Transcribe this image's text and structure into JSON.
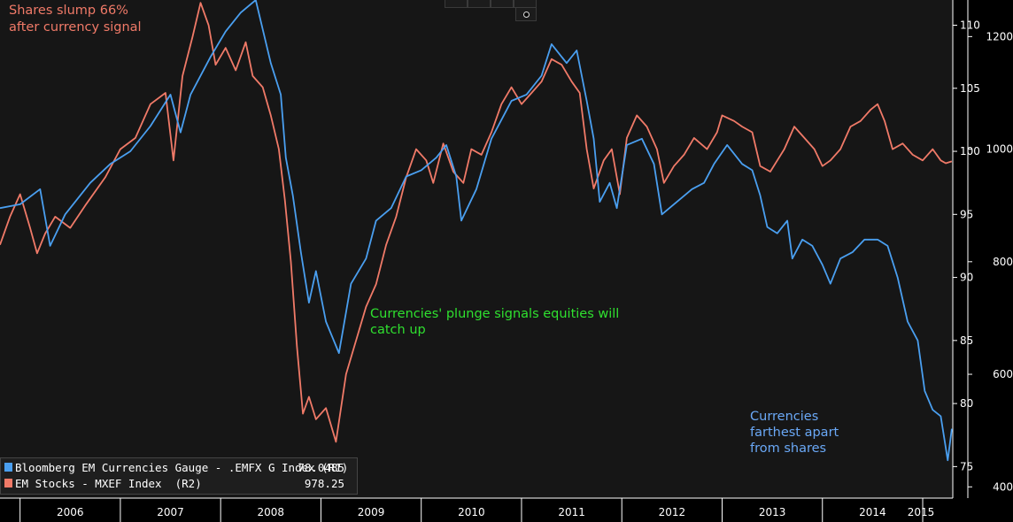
{
  "annotations": {
    "top_left": [
      "Shares slump 66%",
      "after currency signal"
    ],
    "middle": [
      "Currencies' plunge signals equities will",
      "catch up"
    ],
    "bottom_right": [
      "Currencies",
      "farthest apart",
      "from shares"
    ]
  },
  "colors": {
    "background": "#000000",
    "plot_background": "#161616",
    "currencies": "#4a9ff0",
    "stocks": "#f07a68",
    "annotation_orange": "#f07a68",
    "annotation_green": "#2fe02f",
    "annotation_blue": "#6aa8f6"
  },
  "legend": {
    "items": [
      {
        "name": "Bloomberg EM Currencies Gauge - .EMFX G Index (R1)",
        "value": "78.0485",
        "color": "#4a9ff0"
      },
      {
        "name": "EM Stocks - MXEF Index  (R2)",
        "value": "978.25",
        "color": "#f07a68"
      }
    ]
  },
  "chart_data": {
    "type": "line",
    "x_tick_labels": [
      "2006",
      "2007",
      "2008",
      "2009",
      "2010",
      "2011",
      "2012",
      "2013",
      "2014",
      "2015"
    ],
    "x_range": [
      2005.8,
      2015.3
    ],
    "axes": {
      "r1": {
        "ticks": [
          "110",
          "105",
          "100",
          "95",
          "90",
          "85",
          "80",
          "75"
        ],
        "range": [
          72.5,
          112
        ]
      },
      "r2": {
        "ticks": [
          "1200",
          "1000",
          "800",
          "600",
          "400"
        ],
        "range": [
          380,
          1265
        ]
      }
    },
    "grid": false,
    "legend_position": "bottom-left",
    "series": [
      {
        "name": "Bloomberg EM Currencies Gauge - .EMFX G Index (R1)",
        "axis": "r1",
        "points": [
          [
            2005.8,
            95.5
          ],
          [
            2006.0,
            95.8
          ],
          [
            2006.2,
            97.0
          ],
          [
            2006.3,
            92.5
          ],
          [
            2006.45,
            95.0
          ],
          [
            2006.7,
            97.5
          ],
          [
            2006.9,
            99.0
          ],
          [
            2007.1,
            100.0
          ],
          [
            2007.3,
            102.0
          ],
          [
            2007.5,
            104.5
          ],
          [
            2007.6,
            101.5
          ],
          [
            2007.7,
            104.5
          ],
          [
            2007.9,
            107.5
          ],
          [
            2008.05,
            109.5
          ],
          [
            2008.2,
            111.0
          ],
          [
            2008.35,
            112.0
          ],
          [
            2008.5,
            107.0
          ],
          [
            2008.6,
            104.5
          ],
          [
            2008.65,
            99.5
          ],
          [
            2008.72,
            96.5
          ],
          [
            2008.8,
            92.0
          ],
          [
            2008.88,
            88.0
          ],
          [
            2008.95,
            90.5
          ],
          [
            2009.05,
            86.5
          ],
          [
            2009.18,
            84.0
          ],
          [
            2009.3,
            89.5
          ],
          [
            2009.45,
            91.5
          ],
          [
            2009.55,
            94.5
          ],
          [
            2009.7,
            95.5
          ],
          [
            2009.85,
            98.0
          ],
          [
            2010.0,
            98.5
          ],
          [
            2010.15,
            99.5
          ],
          [
            2010.25,
            100.5
          ],
          [
            2010.35,
            98.0
          ],
          [
            2010.4,
            94.5
          ],
          [
            2010.55,
            97.0
          ],
          [
            2010.7,
            101.0
          ],
          [
            2010.9,
            104.0
          ],
          [
            2011.05,
            104.5
          ],
          [
            2011.2,
            106.0
          ],
          [
            2011.3,
            108.5
          ],
          [
            2011.45,
            107.0
          ],
          [
            2011.55,
            108.0
          ],
          [
            2011.65,
            104.0
          ],
          [
            2011.72,
            101.0
          ],
          [
            2011.78,
            96.0
          ],
          [
            2011.88,
            97.5
          ],
          [
            2011.95,
            95.5
          ],
          [
            2012.05,
            100.5
          ],
          [
            2012.2,
            101.0
          ],
          [
            2012.32,
            99.0
          ],
          [
            2012.4,
            95.0
          ],
          [
            2012.55,
            96.0
          ],
          [
            2012.7,
            97.0
          ],
          [
            2012.82,
            97.5
          ],
          [
            2012.92,
            99.0
          ],
          [
            2013.05,
            100.5
          ],
          [
            2013.2,
            99.0
          ],
          [
            2013.3,
            98.5
          ],
          [
            2013.38,
            96.5
          ],
          [
            2013.45,
            94.0
          ],
          [
            2013.55,
            93.5
          ],
          [
            2013.65,
            94.5
          ],
          [
            2013.7,
            91.5
          ],
          [
            2013.8,
            93.0
          ],
          [
            2013.9,
            92.5
          ],
          [
            2014.0,
            91.0
          ],
          [
            2014.08,
            89.5
          ],
          [
            2014.18,
            91.5
          ],
          [
            2014.3,
            92.0
          ],
          [
            2014.42,
            93.0
          ],
          [
            2014.55,
            93.0
          ],
          [
            2014.65,
            92.5
          ],
          [
            2014.75,
            90.0
          ],
          [
            2014.85,
            86.5
          ],
          [
            2014.95,
            85.0
          ],
          [
            2015.02,
            81.0
          ],
          [
            2015.1,
            79.5
          ],
          [
            2015.18,
            79.0
          ],
          [
            2015.25,
            75.5
          ],
          [
            2015.29,
            78.0
          ]
        ]
      },
      {
        "name": "EM Stocks - MXEF Index  (R2)",
        "axis": "r2",
        "points": [
          [
            2005.8,
            830
          ],
          [
            2005.9,
            880
          ],
          [
            2006.0,
            920
          ],
          [
            2006.1,
            860
          ],
          [
            2006.17,
            815
          ],
          [
            2006.25,
            850
          ],
          [
            2006.35,
            880
          ],
          [
            2006.5,
            860
          ],
          [
            2006.65,
            900
          ],
          [
            2006.85,
            950
          ],
          [
            2007.0,
            1000
          ],
          [
            2007.15,
            1020
          ],
          [
            2007.3,
            1080
          ],
          [
            2007.45,
            1100
          ],
          [
            2007.53,
            980
          ],
          [
            2007.62,
            1130
          ],
          [
            2007.72,
            1200
          ],
          [
            2007.8,
            1260
          ],
          [
            2007.88,
            1220
          ],
          [
            2007.95,
            1150
          ],
          [
            2008.05,
            1180
          ],
          [
            2008.15,
            1140
          ],
          [
            2008.25,
            1190
          ],
          [
            2008.32,
            1130
          ],
          [
            2008.42,
            1110
          ],
          [
            2008.5,
            1060
          ],
          [
            2008.58,
            1000
          ],
          [
            2008.64,
            910
          ],
          [
            2008.7,
            800
          ],
          [
            2008.76,
            650
          ],
          [
            2008.82,
            530
          ],
          [
            2008.88,
            560
          ],
          [
            2008.95,
            520
          ],
          [
            2009.05,
            540
          ],
          [
            2009.15,
            480
          ],
          [
            2009.25,
            600
          ],
          [
            2009.35,
            660
          ],
          [
            2009.45,
            720
          ],
          [
            2009.55,
            760
          ],
          [
            2009.65,
            830
          ],
          [
            2009.75,
            880
          ],
          [
            2009.85,
            950
          ],
          [
            2009.95,
            1000
          ],
          [
            2010.05,
            980
          ],
          [
            2010.12,
            940
          ],
          [
            2010.22,
            1010
          ],
          [
            2010.32,
            960
          ],
          [
            2010.42,
            940
          ],
          [
            2010.5,
            1000
          ],
          [
            2010.6,
            990
          ],
          [
            2010.7,
            1030
          ],
          [
            2010.8,
            1080
          ],
          [
            2010.9,
            1110
          ],
          [
            2011.0,
            1080
          ],
          [
            2011.1,
            1100
          ],
          [
            2011.2,
            1120
          ],
          [
            2011.3,
            1160
          ],
          [
            2011.4,
            1150
          ],
          [
            2011.5,
            1120
          ],
          [
            2011.58,
            1100
          ],
          [
            2011.65,
            1000
          ],
          [
            2011.72,
            930
          ],
          [
            2011.82,
            980
          ],
          [
            2011.9,
            1000
          ],
          [
            2011.98,
            920
          ],
          [
            2012.05,
            1020
          ],
          [
            2012.15,
            1060
          ],
          [
            2012.25,
            1040
          ],
          [
            2012.35,
            1000
          ],
          [
            2012.42,
            940
          ],
          [
            2012.52,
            970
          ],
          [
            2012.62,
            990
          ],
          [
            2012.72,
            1020
          ],
          [
            2012.85,
            1000
          ],
          [
            2012.95,
            1030
          ],
          [
            2013.0,
            1060
          ],
          [
            2013.12,
            1050
          ],
          [
            2013.2,
            1040
          ],
          [
            2013.3,
            1030
          ],
          [
            2013.38,
            970
          ],
          [
            2013.48,
            960
          ],
          [
            2013.55,
            980
          ],
          [
            2013.62,
            1000
          ],
          [
            2013.72,
            1040
          ],
          [
            2013.82,
            1020
          ],
          [
            2013.92,
            1000
          ],
          [
            2014.0,
            970
          ],
          [
            2014.08,
            980
          ],
          [
            2014.18,
            1000
          ],
          [
            2014.28,
            1040
          ],
          [
            2014.38,
            1050
          ],
          [
            2014.48,
            1070
          ],
          [
            2014.55,
            1080
          ],
          [
            2014.62,
            1050
          ],
          [
            2014.7,
            1000
          ],
          [
            2014.8,
            1010
          ],
          [
            2014.9,
            990
          ],
          [
            2015.0,
            980
          ],
          [
            2015.1,
            1000
          ],
          [
            2015.18,
            980
          ],
          [
            2015.23,
            975
          ],
          [
            2015.29,
            978.25
          ]
        ]
      }
    ]
  }
}
